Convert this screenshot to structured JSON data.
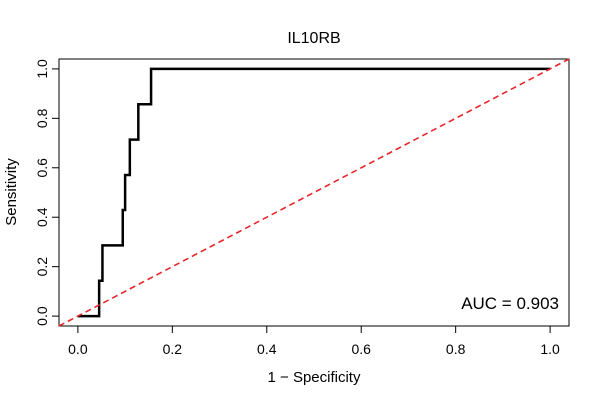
{
  "chart_data": {
    "type": "line",
    "title": "IL10RB",
    "xlabel": "1 − Specificity",
    "ylabel": "Sensitivity",
    "xlim": [
      -0.04,
      1.04
    ],
    "ylim": [
      -0.04,
      1.04
    ],
    "x_ticks": [
      0.0,
      0.2,
      0.4,
      0.6,
      0.8,
      1.0
    ],
    "x_tick_labels": [
      "0.0",
      "0.2",
      "0.4",
      "0.6",
      "0.8",
      "1.0"
    ],
    "y_ticks": [
      0.0,
      0.2,
      0.4,
      0.6,
      0.8,
      1.0
    ],
    "y_tick_labels": [
      "0.0",
      "0.2",
      "0.4",
      "0.6",
      "0.8",
      "1.0"
    ],
    "grid": false,
    "series": [
      {
        "name": "ROC curve",
        "color": "#000000",
        "style": "solid-step",
        "x": [
          0.0,
          0.045,
          0.045,
          0.052,
          0.052,
          0.095,
          0.095,
          0.1,
          0.1,
          0.11,
          0.11,
          0.128,
          0.128,
          0.155,
          0.155,
          1.0
        ],
        "y": [
          0.0,
          0.0,
          0.143,
          0.143,
          0.286,
          0.286,
          0.429,
          0.429,
          0.571,
          0.571,
          0.714,
          0.714,
          0.857,
          0.857,
          1.0,
          1.0
        ]
      },
      {
        "name": "Chance line",
        "color": "#e8262a",
        "style": "dashed",
        "x": [
          -0.04,
          1.04
        ],
        "y": [
          -0.04,
          1.04
        ]
      }
    ],
    "annotations": [
      {
        "text": "AUC = 0.903",
        "position": "bottom-right"
      }
    ]
  }
}
